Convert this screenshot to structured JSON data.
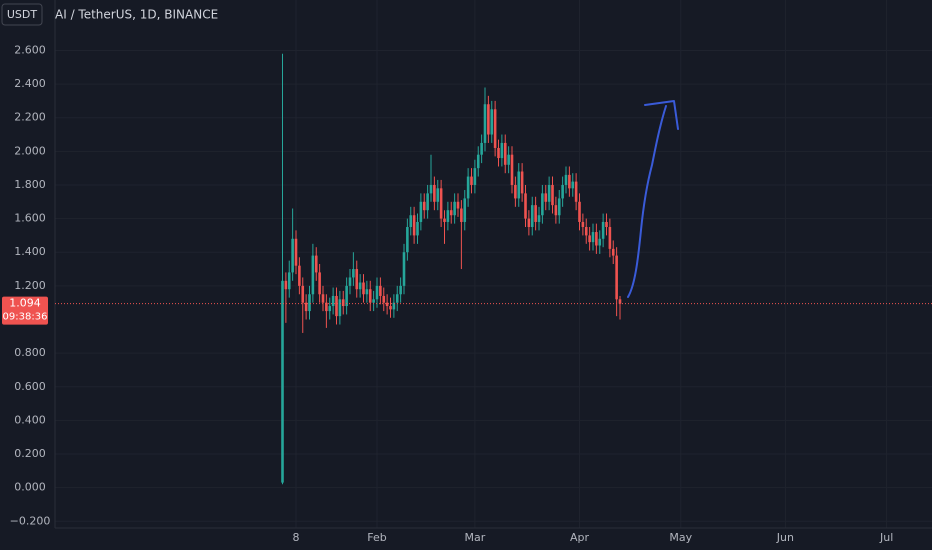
{
  "chart_data": {
    "type": "candlestick",
    "currency": "USDT",
    "title": "AI / TetherUS, 1D, BINANCE",
    "up_color": "#26a69a",
    "down_color": "#ef5350",
    "x": [
      "01-04",
      "01-05",
      "01-06",
      "01-07",
      "01-08",
      "01-09",
      "01-10",
      "01-11",
      "01-12",
      "01-13",
      "01-14",
      "01-15",
      "01-16",
      "01-17",
      "01-18",
      "01-19",
      "01-20",
      "01-21",
      "01-22",
      "01-23",
      "01-24",
      "01-25",
      "01-26",
      "01-27",
      "01-28",
      "01-29",
      "01-30",
      "01-31",
      "02-01",
      "02-02",
      "02-03",
      "02-04",
      "02-05",
      "02-06",
      "02-07",
      "02-08",
      "02-09",
      "02-10",
      "02-11",
      "02-12",
      "02-13",
      "02-14",
      "02-15",
      "02-16",
      "02-17",
      "02-18",
      "02-19",
      "02-20",
      "02-21",
      "02-22",
      "02-23",
      "02-24",
      "02-25",
      "02-26",
      "02-27",
      "02-28",
      "02-29",
      "03-01",
      "03-02",
      "03-03",
      "03-04",
      "03-05",
      "03-06",
      "03-07",
      "03-08",
      "03-09",
      "03-10",
      "03-11",
      "03-12",
      "03-13",
      "03-14",
      "03-15",
      "03-16",
      "03-17",
      "03-18",
      "03-19",
      "03-20",
      "03-21",
      "03-22",
      "03-23",
      "03-24",
      "03-25",
      "03-26",
      "03-27",
      "03-28",
      "03-29",
      "03-30",
      "03-31",
      "04-01",
      "04-02",
      "04-03",
      "04-04",
      "04-05",
      "04-06",
      "04-07",
      "04-08",
      "04-09",
      "04-10",
      "04-11",
      "04-12",
      "04-13"
    ],
    "open": [
      0.03,
      1.23,
      1.18,
      1.28,
      1.48,
      1.32,
      1.2,
      1.1,
      1.05,
      1.15,
      1.38,
      1.28,
      1.15,
      1.1,
      1.05,
      1.08,
      1.14,
      1.02,
      1.12,
      1.08,
      1.2,
      1.25,
      1.3,
      1.18,
      1.22,
      1.15,
      1.18,
      1.1,
      1.12,
      1.2,
      1.14,
      1.1,
      1.08,
      1.06,
      1.1,
      1.15,
      1.2,
      1.4,
      1.55,
      1.62,
      1.5,
      1.58,
      1.7,
      1.65,
      1.75,
      1.8,
      1.7,
      1.78,
      1.6,
      1.58,
      1.65,
      1.62,
      1.7,
      1.66,
      1.58,
      1.72,
      1.85,
      1.8,
      1.9,
      1.98,
      2.05,
      2.28,
      2.1,
      2.25,
      2.02,
      1.96,
      2.05,
      1.92,
      1.98,
      1.8,
      1.72,
      1.88,
      1.75,
      1.6,
      1.55,
      1.68,
      1.58,
      1.62,
      1.75,
      1.7,
      1.8,
      1.68,
      1.62,
      1.72,
      1.8,
      1.86,
      1.78,
      1.82,
      1.7,
      1.58,
      1.55,
      1.5,
      1.46,
      1.52,
      1.44,
      1.48,
      1.58,
      1.55,
      1.42,
      1.38,
      1.12
    ],
    "high": [
      2.58,
      1.28,
      1.35,
      1.66,
      1.53,
      1.37,
      1.25,
      1.15,
      1.2,
      1.45,
      1.43,
      1.33,
      1.2,
      1.15,
      1.13,
      1.19,
      1.19,
      1.17,
      1.17,
      1.25,
      1.3,
      1.4,
      1.35,
      1.27,
      1.27,
      1.23,
      1.23,
      1.17,
      1.25,
      1.25,
      1.19,
      1.15,
      1.13,
      1.15,
      1.2,
      1.25,
      1.45,
      1.6,
      1.67,
      1.67,
      1.63,
      1.75,
      1.75,
      1.8,
      1.98,
      1.85,
      1.83,
      1.83,
      1.65,
      1.7,
      1.7,
      1.75,
      1.75,
      1.71,
      1.77,
      1.9,
      1.9,
      1.95,
      2.03,
      2.1,
      2.38,
      2.33,
      2.3,
      2.3,
      2.07,
      2.1,
      2.1,
      2.03,
      2.03,
      1.85,
      1.93,
      1.93,
      1.8,
      1.65,
      1.73,
      1.73,
      1.67,
      1.8,
      1.8,
      1.85,
      1.85,
      1.73,
      1.77,
      1.85,
      1.91,
      1.91,
      1.87,
      1.87,
      1.75,
      1.63,
      1.6,
      1.55,
      1.57,
      1.57,
      1.53,
      1.63,
      1.63,
      1.6,
      1.47,
      1.43,
      1.14
    ],
    "low": [
      0.02,
      0.98,
      1.13,
      1.23,
      1.27,
      1.15,
      0.92,
      1.0,
      1.0,
      1.1,
      1.23,
      1.1,
      1.05,
      0.95,
      1.0,
      1.03,
      0.97,
      0.97,
      1.03,
      1.03,
      1.15,
      1.2,
      1.13,
      1.13,
      1.1,
      1.1,
      1.05,
      1.05,
      1.07,
      1.09,
      1.05,
      1.03,
      1.01,
      1.01,
      1.05,
      1.1,
      1.15,
      1.35,
      1.5,
      1.45,
      1.45,
      1.53,
      1.6,
      1.6,
      1.7,
      1.65,
      1.65,
      1.55,
      1.45,
      1.53,
      1.57,
      1.57,
      1.61,
      1.3,
      1.53,
      1.67,
      1.75,
      1.75,
      1.85,
      1.93,
      2.0,
      2.05,
      2.05,
      1.97,
      1.91,
      1.91,
      1.87,
      1.87,
      1.75,
      1.67,
      1.67,
      1.7,
      1.55,
      1.5,
      1.5,
      1.53,
      1.53,
      1.57,
      1.65,
      1.65,
      1.63,
      1.57,
      1.57,
      1.67,
      1.75,
      1.73,
      1.73,
      1.65,
      1.53,
      1.5,
      1.45,
      1.41,
      1.41,
      1.39,
      1.39,
      1.43,
      1.5,
      1.37,
      1.33,
      1.02,
      1.0
    ],
    "close": [
      1.23,
      1.18,
      1.28,
      1.48,
      1.32,
      1.2,
      1.1,
      1.05,
      1.15,
      1.38,
      1.28,
      1.15,
      1.1,
      1.05,
      1.08,
      1.14,
      1.02,
      1.12,
      1.08,
      1.2,
      1.25,
      1.3,
      1.18,
      1.22,
      1.15,
      1.18,
      1.1,
      1.12,
      1.2,
      1.14,
      1.1,
      1.08,
      1.06,
      1.1,
      1.15,
      1.2,
      1.4,
      1.55,
      1.62,
      1.5,
      1.58,
      1.7,
      1.65,
      1.75,
      1.8,
      1.7,
      1.78,
      1.6,
      1.58,
      1.65,
      1.62,
      1.7,
      1.66,
      1.58,
      1.72,
      1.85,
      1.8,
      1.9,
      1.98,
      2.05,
      2.28,
      2.1,
      2.25,
      2.02,
      1.96,
      2.05,
      1.92,
      1.98,
      1.8,
      1.72,
      1.88,
      1.75,
      1.6,
      1.55,
      1.68,
      1.58,
      1.62,
      1.75,
      1.7,
      1.8,
      1.68,
      1.62,
      1.72,
      1.8,
      1.86,
      1.78,
      1.82,
      1.7,
      1.58,
      1.55,
      1.5,
      1.46,
      1.52,
      1.44,
      1.48,
      1.58,
      1.55,
      1.42,
      1.38,
      1.12,
      1.094
    ],
    "ylim": [
      -0.24,
      2.9
    ],
    "yticks": [
      {
        "value": -0.2,
        "label": "−0.200"
      },
      {
        "value": 0,
        "label": "0.000"
      },
      {
        "value": 0.2,
        "label": "0.200"
      },
      {
        "value": 0.4,
        "label": "0.400"
      },
      {
        "value": 0.6,
        "label": "0.600"
      },
      {
        "value": 0.8,
        "label": "0.800"
      },
      {
        "value": 1.2,
        "label": "1.200"
      },
      {
        "value": 1.4,
        "label": "1.400"
      },
      {
        "value": 1.6,
        "label": "1.600"
      },
      {
        "value": 1.8,
        "label": "1.800"
      },
      {
        "value": 2,
        "label": "2.000"
      },
      {
        "value": 2.2,
        "label": "2.200"
      },
      {
        "value": 2.4,
        "label": "2.400"
      },
      {
        "value": 2.6,
        "label": "2.600"
      }
    ],
    "xticks": [
      {
        "value": "01-08",
        "label": "8"
      },
      {
        "value": "02-01",
        "label": "Feb"
      },
      {
        "value": "03-01",
        "label": "Mar"
      },
      {
        "value": "04-01",
        "label": "Apr"
      },
      {
        "value": "05-01",
        "label": "May"
      },
      {
        "value": "06-01",
        "label": "Jun"
      },
      {
        "value": "07-01",
        "label": "Jul"
      }
    ],
    "last_price": 1.094,
    "countdown": "09:38:36",
    "grid": true
  }
}
